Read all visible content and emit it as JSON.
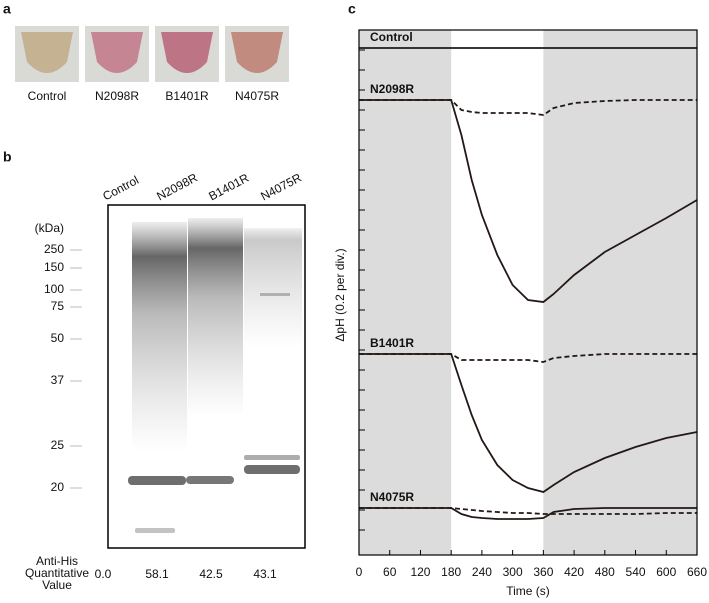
{
  "panel_a": {
    "letter": "a",
    "labels": [
      "Control",
      "N2098R",
      "B1401R",
      "N4075R"
    ]
  },
  "panel_b": {
    "letter": "b",
    "lanes": [
      "Control",
      "N2098R",
      "B1401R",
      "N4075R"
    ],
    "unit": "(kDa)",
    "markers": [
      "250",
      "150",
      "100",
      "75",
      "50",
      "37",
      "25",
      "20"
    ],
    "quant_label": [
      "Anti-His",
      "Quantitative",
      "Value"
    ],
    "values": [
      "0.0",
      "58.1",
      "42.5",
      "43.1"
    ]
  },
  "chart_data": {
    "type": "line",
    "letter": "c",
    "xlabel": "Time (s)",
    "ylabel": "ΔpH (0.2 per div.)",
    "x": [
      0,
      60,
      120,
      180,
      200,
      220,
      240,
      270,
      300,
      330,
      360,
      380,
      420,
      480,
      540,
      600,
      660
    ],
    "xlim": [
      0,
      660
    ],
    "xticks": [
      0,
      60,
      120,
      180,
      240,
      300,
      360,
      420,
      480,
      540,
      600,
      660
    ],
    "ylim": [
      -5.25,
      0
    ],
    "yticks": [
      -0.2,
      -0.4,
      -0.6,
      -0.8,
      -1,
      -1.2,
      -1.4,
      -1.6,
      -1.8,
      -2,
      -2.2,
      -2.4,
      -2.6,
      -2.8,
      -3,
      -3.2,
      -3.4,
      -3.6,
      -3.8,
      -4,
      -4.2,
      -4.4,
      -4.6,
      -4.8,
      -5
    ],
    "shaded": [
      [
        0,
        180
      ],
      [
        360,
        660
      ]
    ],
    "shade_color": "#dcdcdc",
    "series": [
      {
        "name": "Control",
        "color": "#231815",
        "dash": false,
        "values": [
          -0.18,
          -0.18,
          -0.18,
          -0.18,
          -0.18,
          -0.18,
          -0.18,
          -0.18,
          -0.18,
          -0.18,
          -0.18,
          -0.18,
          -0.18,
          -0.18,
          -0.18,
          -0.18,
          -0.18
        ]
      },
      {
        "name": "N2098R",
        "color": "#231815",
        "dash": false,
        "values": [
          -0.7,
          -0.7,
          -0.7,
          -0.7,
          -1.05,
          -1.5,
          -1.85,
          -2.25,
          -2.55,
          -2.7,
          -2.72,
          -2.64,
          -2.45,
          -2.22,
          -2.05,
          -1.88,
          -1.7
        ]
      },
      {
        "color": "#231815",
        "dash": true,
        "values": [
          -0.7,
          -0.7,
          -0.7,
          -0.7,
          -0.8,
          -0.82,
          -0.83,
          -0.83,
          -0.83,
          -0.83,
          -0.85,
          -0.78,
          -0.73,
          -0.71,
          -0.7,
          -0.7,
          -0.7
        ]
      },
      {
        "name": "B1401R",
        "color": "#231815",
        "dash": false,
        "values": [
          -3.24,
          -3.24,
          -3.24,
          -3.24,
          -3.55,
          -3.85,
          -4.1,
          -4.35,
          -4.5,
          -4.58,
          -4.62,
          -4.55,
          -4.42,
          -4.28,
          -4.17,
          -4.08,
          -4.02
        ]
      },
      {
        "color": "#231815",
        "dash": true,
        "values": [
          -3.24,
          -3.24,
          -3.24,
          -3.24,
          -3.3,
          -3.3,
          -3.3,
          -3.3,
          -3.3,
          -3.3,
          -3.32,
          -3.28,
          -3.26,
          -3.24,
          -3.24,
          -3.24,
          -3.24
        ]
      },
      {
        "name": "N4075R",
        "color": "#231815",
        "dash": false,
        "values": [
          -4.78,
          -4.78,
          -4.78,
          -4.78,
          -4.84,
          -4.87,
          -4.88,
          -4.89,
          -4.89,
          -4.89,
          -4.88,
          -4.82,
          -4.79,
          -4.78,
          -4.78,
          -4.78,
          -4.78
        ]
      },
      {
        "color": "#231815",
        "dash": true,
        "values": [
          -4.78,
          -4.78,
          -4.78,
          -4.78,
          -4.79,
          -4.8,
          -4.81,
          -4.82,
          -4.83,
          -4.83,
          -4.84,
          -4.84,
          -4.84,
          -4.84,
          -4.84,
          -4.83,
          -4.83
        ]
      }
    ]
  }
}
